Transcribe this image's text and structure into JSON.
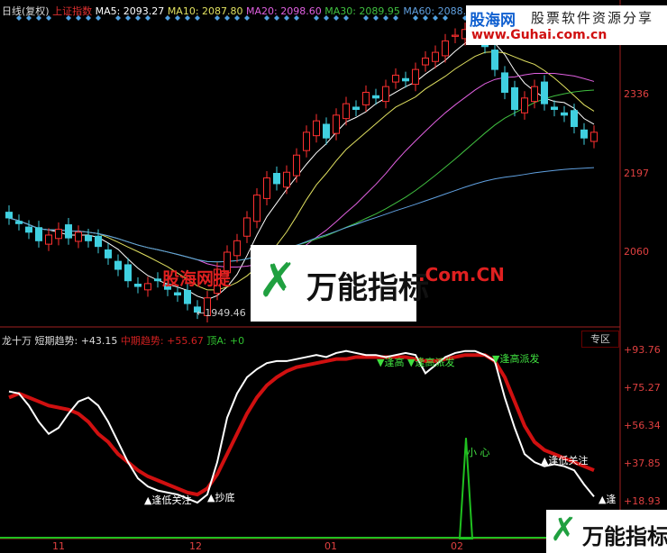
{
  "header": {
    "period": "日线(复权)",
    "symbol": "上证指数",
    "ma5": "MA5: 2093.27",
    "ma10": "MA10: 2087.80",
    "ma20": "MA20: 2098.60",
    "ma30": "MA30: 2089.95",
    "ma60": "MA60: 2088.",
    "colors": {
      "ma5": "#ffffff",
      "ma10": "#e0e060",
      "ma20": "#e060e0",
      "ma30": "#40c040",
      "ma60": "#60a0e0"
    }
  },
  "price_axis": [
    "2336",
    "2197",
    "2060"
  ],
  "low_label": "←1949.46",
  "indicator": {
    "name": "龙十万",
    "short_label": "短期趋势: +43.15",
    "mid_label": "中期趋势: +55.67",
    "top_label": "顶A: +0",
    "zone_button": "专区",
    "axis": [
      "+93.76",
      "+75.27",
      "+56.34",
      "+37.85",
      "+18.93"
    ],
    "signals": [
      {
        "text": "▲逢低关注",
        "color": "#ffffff"
      },
      {
        "text": "▲抄底",
        "color": "#ffffff"
      },
      {
        "text": "▼逢高",
        "color": "#40e040"
      },
      {
        "text": "▼逢高派发",
        "color": "#40e040"
      },
      {
        "text": "▼逢高派发",
        "color": "#40e040"
      },
      {
        "text": "小 心",
        "color": "#40e040"
      },
      {
        "text": "▲逢低关注",
        "color": "#ffffff"
      },
      {
        "text": "▲逢",
        "color": "#ffffff"
      }
    ],
    "short_trend": [
      73,
      72,
      66,
      58,
      52,
      55,
      62,
      68,
      70,
      66,
      58,
      48,
      38,
      30,
      26,
      24,
      23,
      22,
      20,
      18,
      22,
      38,
      60,
      72,
      80,
      84,
      87,
      88,
      88,
      89,
      90,
      91,
      90,
      92,
      93,
      92,
      91,
      91,
      90,
      91,
      92,
      91,
      82,
      86,
      90,
      92,
      93,
      93,
      91,
      88,
      70,
      55,
      42,
      38,
      36,
      37,
      36,
      34,
      27,
      21
    ],
    "mid_trend": [
      70,
      72,
      70,
      68,
      66,
      65,
      64,
      62,
      58,
      52,
      48,
      42,
      38,
      34,
      31,
      29,
      27,
      25,
      23,
      22,
      25,
      32,
      42,
      52,
      62,
      70,
      76,
      80,
      83,
      85,
      86,
      87,
      88,
      89,
      89,
      90,
      90,
      90,
      90,
      90,
      90,
      89,
      88,
      88,
      89,
      90,
      91,
      91,
      91,
      88,
      80,
      68,
      56,
      48,
      44,
      42,
      40,
      38,
      36,
      34
    ],
    "spike": 50
  },
  "chart_data": {
    "type": "candlestick",
    "closes": [
      2120,
      2110,
      2095,
      2080,
      2090,
      2100,
      2085,
      2095,
      2080,
      2070,
      2050,
      2030,
      2010,
      2000,
      2005,
      2010,
      1995,
      1985,
      1970,
      1955,
      1980,
      2030,
      2060,
      2080,
      2120,
      2160,
      2190,
      2180,
      2200,
      2230,
      2270,
      2290,
      2260,
      2300,
      2320,
      2310,
      2340,
      2330,
      2350,
      2370,
      2360,
      2380,
      2400,
      2410,
      2430,
      2440,
      2450,
      2440,
      2420,
      2380,
      2340,
      2310,
      2330,
      2350,
      2320,
      2310,
      2300,
      2280,
      2260,
      2270
    ],
    "ylim": [
      1930,
      2470
    ]
  },
  "x_axis": [
    "11",
    "12",
    "01",
    "02"
  ],
  "watermark": {
    "site": "股海网",
    "slogan": "股票软件资源分享",
    "url": "www.Guhai.com.cn",
    "center_left": "股海网提",
    "center_logo": "万能指标",
    "center_right": ".Com.CN",
    "corner_logo": "万能指标"
  },
  "colors": {
    "up": "#ff3030",
    "down": "#40d0e0",
    "short": "#ffffff",
    "mid": "#d01010",
    "signal": "#20c020"
  }
}
